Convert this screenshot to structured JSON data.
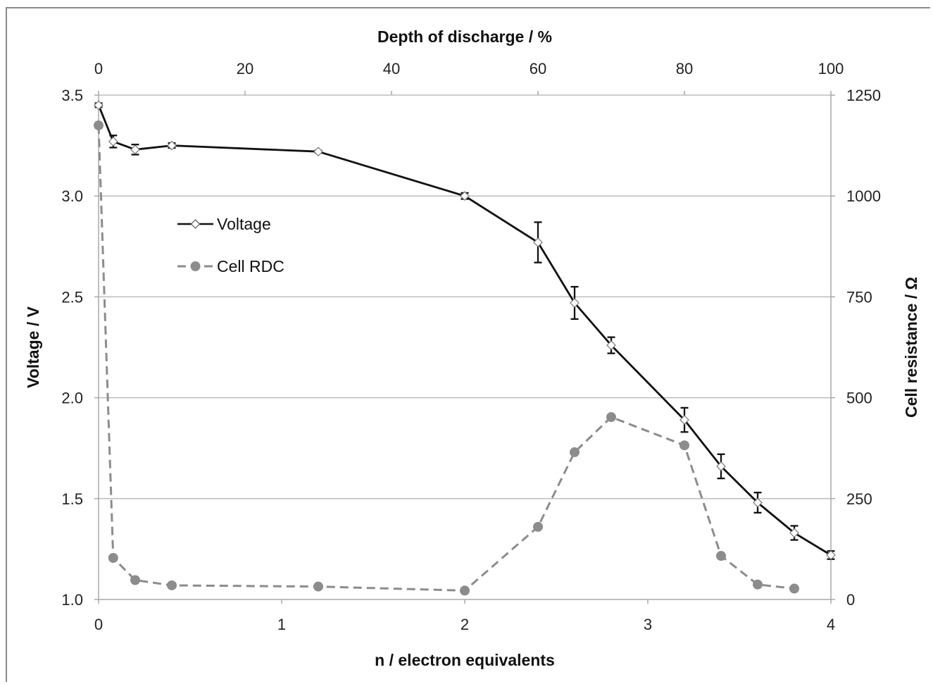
{
  "chart_data": {
    "type": "line",
    "top_axis": {
      "label": "Depth of discharge / %",
      "range": [
        0,
        100
      ],
      "ticks": [
        0,
        20,
        40,
        60,
        80,
        100
      ]
    },
    "x_axis": {
      "label": "n / electron equivalents",
      "range": [
        0,
        4
      ],
      "ticks": [
        0,
        1,
        2,
        3,
        4
      ]
    },
    "y_left": {
      "label": "Voltage / V",
      "range": [
        1.0,
        3.5
      ],
      "ticks": [
        "1.0",
        "1.5",
        "2.0",
        "2.5",
        "3.0",
        "3.5"
      ]
    },
    "y_right": {
      "label": "Cell resistance / Ω",
      "range": [
        0,
        1250
      ],
      "ticks": [
        0,
        250,
        500,
        750,
        1000,
        1250
      ]
    },
    "grid": "horizontal",
    "legend": {
      "placement": "upper-left",
      "entries": [
        "Voltage",
        "Cell RDC"
      ]
    },
    "series": [
      {
        "name": "Voltage",
        "axis": "left",
        "color": "#111111",
        "style": "solid",
        "marker": "open-diamond",
        "points": [
          {
            "x": 0.0,
            "y": 3.45,
            "err": 0.01
          },
          {
            "x": 0.08,
            "y": 3.27,
            "err": 0.03
          },
          {
            "x": 0.2,
            "y": 3.23,
            "err": 0.025
          },
          {
            "x": 0.4,
            "y": 3.25,
            "err": 0.012
          },
          {
            "x": 1.2,
            "y": 3.22,
            "err": 0.005
          },
          {
            "x": 2.0,
            "y": 3.0,
            "err": 0.015
          },
          {
            "x": 2.4,
            "y": 2.77,
            "err": 0.1
          },
          {
            "x": 2.6,
            "y": 2.47,
            "err": 0.08
          },
          {
            "x": 2.8,
            "y": 2.26,
            "err": 0.04
          },
          {
            "x": 3.2,
            "y": 1.89,
            "err": 0.06
          },
          {
            "x": 3.4,
            "y": 1.66,
            "err": 0.06
          },
          {
            "x": 3.6,
            "y": 1.48,
            "err": 0.05
          },
          {
            "x": 3.8,
            "y": 1.33,
            "err": 0.035
          },
          {
            "x": 4.0,
            "y": 1.22,
            "err": 0.02
          }
        ]
      },
      {
        "name": "Cell RDC",
        "axis": "right",
        "color": "#8c8c8c",
        "style": "dashed",
        "marker": "filled-circle",
        "points": [
          {
            "x": 0.0,
            "y": 1175
          },
          {
            "x": 0.08,
            "y": 103
          },
          {
            "x": 0.2,
            "y": 48
          },
          {
            "x": 0.4,
            "y": 35
          },
          {
            "x": 1.2,
            "y": 32
          },
          {
            "x": 2.0,
            "y": 22
          },
          {
            "x": 2.4,
            "y": 180
          },
          {
            "x": 2.6,
            "y": 365
          },
          {
            "x": 2.8,
            "y": 452
          },
          {
            "x": 3.2,
            "y": 382
          },
          {
            "x": 3.4,
            "y": 108
          },
          {
            "x": 3.6,
            "y": 37
          },
          {
            "x": 3.8,
            "y": 27
          }
        ]
      }
    ]
  }
}
